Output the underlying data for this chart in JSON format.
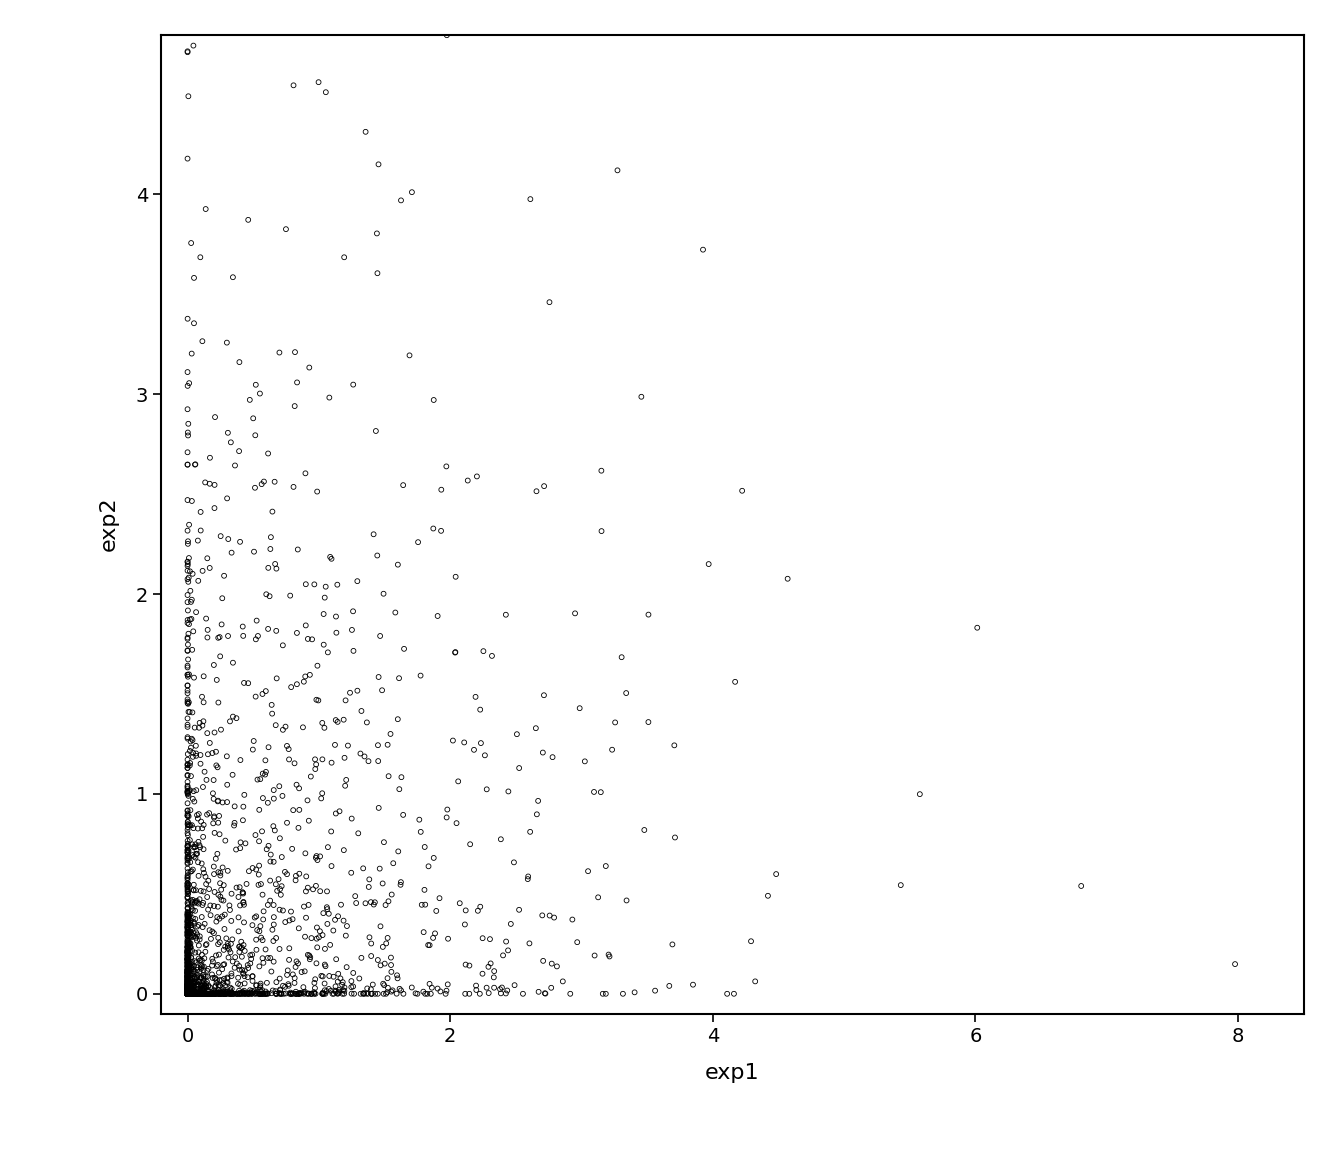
{
  "title": "",
  "xlabel": "exp1",
  "ylabel": "exp2",
  "xlim": [
    -0.2,
    8.5
  ],
  "ylim": [
    -0.1,
    4.8
  ],
  "xticks": [
    0,
    2,
    4,
    6,
    8
  ],
  "yticks": [
    0,
    1,
    2,
    3,
    4
  ],
  "background_color": "#ffffff",
  "point_color": "black",
  "point_facecolor": "none",
  "marker": "o",
  "marker_size": 3.5,
  "linewidth": 0.6,
  "n_points": 10000,
  "copula_theta": 10.0,
  "exponential_rate": 1.0,
  "random_seed": 42,
  "xlabel_fontsize": 16,
  "ylabel_fontsize": 16,
  "tick_fontsize": 14,
  "figsize": [
    13.44,
    11.52
  ],
  "dpi": 100
}
